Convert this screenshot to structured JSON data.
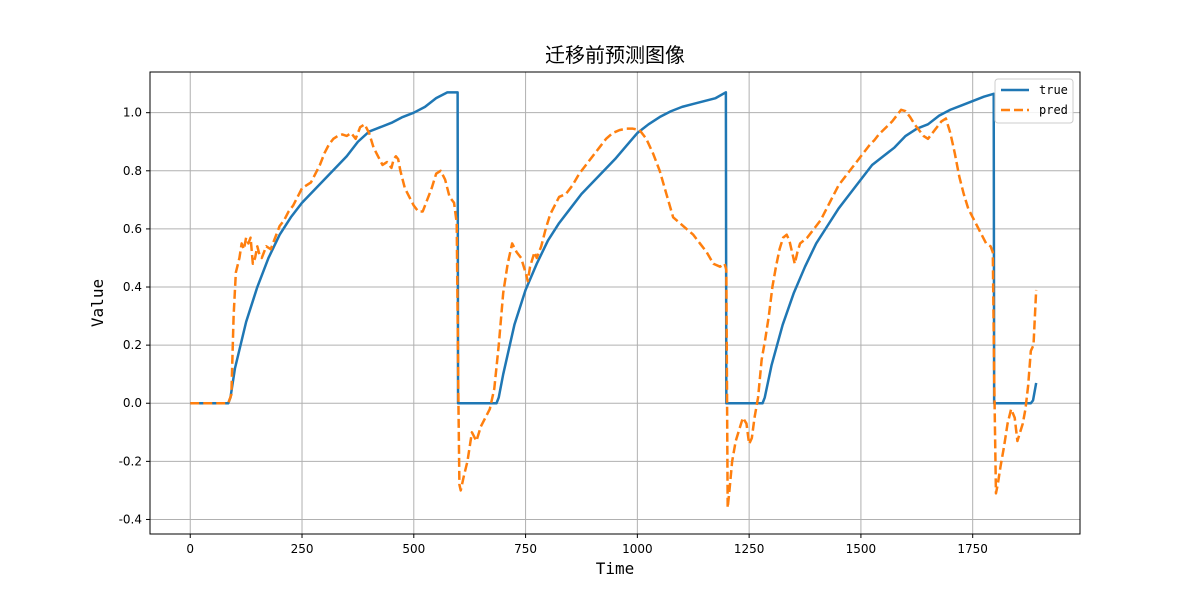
{
  "chart_data": {
    "type": "line",
    "title": "迁移前预测图像",
    "xlabel": "Time",
    "ylabel": "Value",
    "xlim": [
      -90,
      1990
    ],
    "ylim": [
      -0.45,
      1.14
    ],
    "xticks": [
      0,
      250,
      500,
      750,
      1000,
      1250,
      1500,
      1750
    ],
    "yticks": [
      -0.4,
      -0.2,
      0.0,
      0.2,
      0.4,
      0.6,
      0.8,
      1.0
    ],
    "xtick_labels": [
      "0",
      "250",
      "500",
      "750",
      "1000",
      "1250",
      "1500",
      "1750"
    ],
    "ytick_labels": [
      "-0.4",
      "-0.2",
      "0.0",
      "0.2",
      "0.4",
      "0.6",
      "0.8",
      "1.0"
    ],
    "grid": true,
    "legend_position": "top-right",
    "series": [
      {
        "name": "true",
        "color": "#1f77b4",
        "style": "solid",
        "points": [
          [
            0,
            0
          ],
          [
            85,
            0
          ],
          [
            90,
            0.02
          ],
          [
            100,
            0.12
          ],
          [
            125,
            0.28
          ],
          [
            150,
            0.4
          ],
          [
            175,
            0.5
          ],
          [
            200,
            0.58
          ],
          [
            225,
            0.64
          ],
          [
            250,
            0.69
          ],
          [
            275,
            0.73
          ],
          [
            300,
            0.77
          ],
          [
            325,
            0.81
          ],
          [
            350,
            0.85
          ],
          [
            375,
            0.9
          ],
          [
            400,
            0.935
          ],
          [
            425,
            0.95
          ],
          [
            450,
            0.965
          ],
          [
            475,
            0.985
          ],
          [
            500,
            1.0
          ],
          [
            525,
            1.02
          ],
          [
            550,
            1.05
          ],
          [
            575,
            1.07
          ],
          [
            598,
            1.07
          ],
          [
            599,
            0.0
          ],
          [
            685,
            0.0
          ],
          [
            690,
            0.02
          ],
          [
            700,
            0.1
          ],
          [
            725,
            0.27
          ],
          [
            750,
            0.39
          ],
          [
            775,
            0.48
          ],
          [
            800,
            0.56
          ],
          [
            825,
            0.62
          ],
          [
            850,
            0.67
          ],
          [
            875,
            0.72
          ],
          [
            900,
            0.76
          ],
          [
            925,
            0.8
          ],
          [
            950,
            0.84
          ],
          [
            975,
            0.885
          ],
          [
            1000,
            0.93
          ],
          [
            1025,
            0.96
          ],
          [
            1050,
            0.985
          ],
          [
            1075,
            1.005
          ],
          [
            1100,
            1.02
          ],
          [
            1125,
            1.03
          ],
          [
            1150,
            1.04
          ],
          [
            1175,
            1.05
          ],
          [
            1198,
            1.07
          ],
          [
            1199,
            0.0
          ],
          [
            1280,
            0.0
          ],
          [
            1285,
            0.02
          ],
          [
            1300,
            0.13
          ],
          [
            1325,
            0.27
          ],
          [
            1350,
            0.38
          ],
          [
            1375,
            0.47
          ],
          [
            1400,
            0.55
          ],
          [
            1425,
            0.61
          ],
          [
            1450,
            0.67
          ],
          [
            1475,
            0.72
          ],
          [
            1500,
            0.77
          ],
          [
            1525,
            0.82
          ],
          [
            1550,
            0.85
          ],
          [
            1575,
            0.88
          ],
          [
            1600,
            0.92
          ],
          [
            1625,
            0.945
          ],
          [
            1650,
            0.96
          ],
          [
            1675,
            0.99
          ],
          [
            1700,
            1.01
          ],
          [
            1725,
            1.025
          ],
          [
            1750,
            1.04
          ],
          [
            1775,
            1.055
          ],
          [
            1797,
            1.065
          ],
          [
            1798,
            0.0
          ],
          [
            1880,
            0.0
          ],
          [
            1885,
            0.01
          ],
          [
            1892,
            0.07
          ]
        ]
      },
      {
        "name": "pred",
        "color": "#ff7f0e",
        "style": "dashed",
        "points": [
          [
            0,
            0
          ],
          [
            85,
            0
          ],
          [
            92,
            0.03
          ],
          [
            97,
            0.3
          ],
          [
            102,
            0.45
          ],
          [
            110,
            0.5
          ],
          [
            115,
            0.55
          ],
          [
            120,
            0.53
          ],
          [
            125,
            0.57
          ],
          [
            130,
            0.55
          ],
          [
            135,
            0.57
          ],
          [
            140,
            0.48
          ],
          [
            145,
            0.5
          ],
          [
            150,
            0.54
          ],
          [
            155,
            0.51
          ],
          [
            160,
            0.5
          ],
          [
            170,
            0.54
          ],
          [
            180,
            0.53
          ],
          [
            190,
            0.57
          ],
          [
            200,
            0.61
          ],
          [
            210,
            0.63
          ],
          [
            220,
            0.66
          ],
          [
            230,
            0.68
          ],
          [
            240,
            0.71
          ],
          [
            250,
            0.74
          ],
          [
            260,
            0.75
          ],
          [
            270,
            0.76
          ],
          [
            280,
            0.79
          ],
          [
            290,
            0.82
          ],
          [
            300,
            0.86
          ],
          [
            310,
            0.89
          ],
          [
            320,
            0.91
          ],
          [
            330,
            0.92
          ],
          [
            340,
            0.925
          ],
          [
            350,
            0.92
          ],
          [
            360,
            0.93
          ],
          [
            370,
            0.91
          ],
          [
            380,
            0.95
          ],
          [
            390,
            0.96
          ],
          [
            400,
            0.93
          ],
          [
            410,
            0.88
          ],
          [
            420,
            0.85
          ],
          [
            430,
            0.82
          ],
          [
            440,
            0.83
          ],
          [
            450,
            0.81
          ],
          [
            455,
            0.84
          ],
          [
            460,
            0.85
          ],
          [
            465,
            0.84
          ],
          [
            470,
            0.8
          ],
          [
            480,
            0.74
          ],
          [
            490,
            0.71
          ],
          [
            500,
            0.68
          ],
          [
            510,
            0.66
          ],
          [
            520,
            0.66
          ],
          [
            530,
            0.7
          ],
          [
            540,
            0.74
          ],
          [
            550,
            0.79
          ],
          [
            560,
            0.8
          ],
          [
            570,
            0.77
          ],
          [
            580,
            0.71
          ],
          [
            590,
            0.69
          ],
          [
            596,
            0.62
          ],
          [
            600,
            -0.02
          ],
          [
            602,
            -0.28
          ],
          [
            605,
            -0.3
          ],
          [
            612,
            -0.25
          ],
          [
            620,
            -0.2
          ],
          [
            630,
            -0.1
          ],
          [
            640,
            -0.13
          ],
          [
            650,
            -0.08
          ],
          [
            660,
            -0.05
          ],
          [
            670,
            -0.02
          ],
          [
            680,
            0.05
          ],
          [
            690,
            0.2
          ],
          [
            700,
            0.38
          ],
          [
            710,
            0.48
          ],
          [
            720,
            0.55
          ],
          [
            730,
            0.52
          ],
          [
            740,
            0.5
          ],
          [
            750,
            0.45
          ],
          [
            755,
            0.42
          ],
          [
            760,
            0.47
          ],
          [
            770,
            0.52
          ],
          [
            775,
            0.5
          ],
          [
            785,
            0.54
          ],
          [
            795,
            0.6
          ],
          [
            805,
            0.65
          ],
          [
            815,
            0.68
          ],
          [
            825,
            0.71
          ],
          [
            840,
            0.72
          ],
          [
            855,
            0.75
          ],
          [
            870,
            0.79
          ],
          [
            885,
            0.82
          ],
          [
            900,
            0.85
          ],
          [
            915,
            0.88
          ],
          [
            930,
            0.91
          ],
          [
            945,
            0.93
          ],
          [
            960,
            0.94
          ],
          [
            975,
            0.945
          ],
          [
            990,
            0.945
          ],
          [
            1005,
            0.94
          ],
          [
            1020,
            0.91
          ],
          [
            1035,
            0.86
          ],
          [
            1050,
            0.8
          ],
          [
            1065,
            0.72
          ],
          [
            1080,
            0.64
          ],
          [
            1095,
            0.62
          ],
          [
            1110,
            0.6
          ],
          [
            1125,
            0.58
          ],
          [
            1140,
            0.55
          ],
          [
            1155,
            0.52
          ],
          [
            1170,
            0.48
          ],
          [
            1185,
            0.47
          ],
          [
            1195,
            0.48
          ],
          [
            1199,
            0.46
          ],
          [
            1202,
            -0.36
          ],
          [
            1206,
            -0.3
          ],
          [
            1212,
            -0.2
          ],
          [
            1220,
            -0.13
          ],
          [
            1228,
            -0.09
          ],
          [
            1236,
            -0.05
          ],
          [
            1244,
            -0.07
          ],
          [
            1250,
            -0.14
          ],
          [
            1256,
            -0.12
          ],
          [
            1262,
            -0.05
          ],
          [
            1270,
            0.02
          ],
          [
            1278,
            0.15
          ],
          [
            1286,
            0.22
          ],
          [
            1294,
            0.3
          ],
          [
            1302,
            0.4
          ],
          [
            1310,
            0.47
          ],
          [
            1318,
            0.53
          ],
          [
            1326,
            0.57
          ],
          [
            1334,
            0.58
          ],
          [
            1340,
            0.56
          ],
          [
            1346,
            0.52
          ],
          [
            1352,
            0.48
          ],
          [
            1358,
            0.52
          ],
          [
            1364,
            0.55
          ],
          [
            1372,
            0.56
          ],
          [
            1380,
            0.57
          ],
          [
            1390,
            0.59
          ],
          [
            1400,
            0.61
          ],
          [
            1410,
            0.63
          ],
          [
            1420,
            0.66
          ],
          [
            1430,
            0.69
          ],
          [
            1440,
            0.72
          ],
          [
            1450,
            0.75
          ],
          [
            1460,
            0.77
          ],
          [
            1470,
            0.79
          ],
          [
            1480,
            0.81
          ],
          [
            1490,
            0.83
          ],
          [
            1500,
            0.85
          ],
          [
            1510,
            0.87
          ],
          [
            1520,
            0.89
          ],
          [
            1530,
            0.905
          ],
          [
            1540,
            0.925
          ],
          [
            1550,
            0.94
          ],
          [
            1560,
            0.955
          ],
          [
            1570,
            0.97
          ],
          [
            1580,
            0.99
          ],
          [
            1590,
            1.01
          ],
          [
            1600,
            1.005
          ],
          [
            1610,
            0.985
          ],
          [
            1620,
            0.96
          ],
          [
            1630,
            0.94
          ],
          [
            1640,
            0.92
          ],
          [
            1650,
            0.91
          ],
          [
            1660,
            0.93
          ],
          [
            1670,
            0.95
          ],
          [
            1680,
            0.97
          ],
          [
            1690,
            0.98
          ],
          [
            1700,
            0.93
          ],
          [
            1710,
            0.86
          ],
          [
            1720,
            0.78
          ],
          [
            1730,
            0.72
          ],
          [
            1740,
            0.67
          ],
          [
            1750,
            0.64
          ],
          [
            1760,
            0.61
          ],
          [
            1770,
            0.58
          ],
          [
            1780,
            0.55
          ],
          [
            1790,
            0.54
          ],
          [
            1795,
            0.52
          ],
          [
            1798,
            0.1
          ],
          [
            1802,
            -0.31
          ],
          [
            1806,
            -0.28
          ],
          [
            1812,
            -0.22
          ],
          [
            1820,
            -0.15
          ],
          [
            1828,
            -0.07
          ],
          [
            1836,
            -0.02
          ],
          [
            1844,
            -0.05
          ],
          [
            1850,
            -0.13
          ],
          [
            1856,
            -0.1
          ],
          [
            1862,
            -0.07
          ],
          [
            1868,
            -0.02
          ],
          [
            1874,
            0.06
          ],
          [
            1880,
            0.18
          ],
          [
            1886,
            0.2
          ],
          [
            1892,
            0.39
          ]
        ]
      }
    ]
  }
}
